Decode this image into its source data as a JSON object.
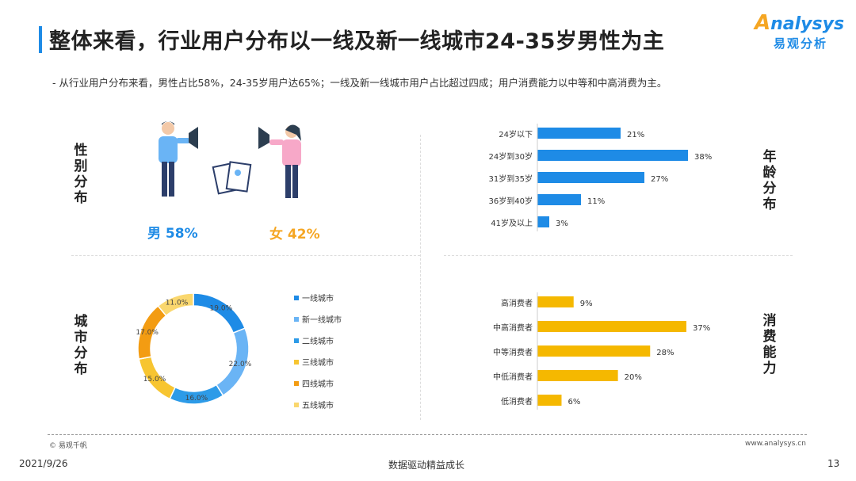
{
  "title": "整体来看，行业用户分布以一线及新一线城市24-35岁男性为主",
  "logo": {
    "en_first": "A",
    "en_rest": "nalysys",
    "cn": "易观分析"
  },
  "subtitle": "- 从行业用户分布来看，男性占比58%，24-35岁用户达65%；一线及新一线城市用户占比超过四成；用户消费能力以中等和中高消费为主。",
  "sections": {
    "gender": "性别分布",
    "age": "年龄分布",
    "city": "城市分布",
    "consumption": "消费能力"
  },
  "gender": {
    "male_label": "男 58%",
    "female_label": "女 42%"
  },
  "colors": {
    "blue": "#1e8be6",
    "orange": "#f5a623",
    "title_bar": "#1e8be6"
  },
  "chart_data": [
    {
      "type": "bar",
      "orientation": "horizontal",
      "section": "年龄分布",
      "categories": [
        "24岁以下",
        "24岁到30岁",
        "31岁到35岁",
        "36岁到40岁",
        "41岁及以上"
      ],
      "values": [
        21,
        38,
        27,
        11,
        3
      ],
      "value_labels": [
        "21%",
        "38%",
        "27%",
        "11%",
        "3%"
      ],
      "xlim": [
        0,
        38
      ],
      "color": "#1e8be6"
    },
    {
      "type": "bar",
      "orientation": "horizontal",
      "section": "消费能力",
      "categories": [
        "高消费者",
        "中高消费者",
        "中等消费者",
        "中低消费者",
        "低消费者"
      ],
      "values": [
        9,
        37,
        28,
        20,
        6
      ],
      "value_labels": [
        "9%",
        "37%",
        "28%",
        "20%",
        "6%"
      ],
      "xlim": [
        0,
        37
      ],
      "color": "#f5b800"
    },
    {
      "type": "pie",
      "style": "donut",
      "section": "城市分布",
      "legend_position": "right",
      "categories": [
        "一线城市",
        "新一线城市",
        "二线城市",
        "三线城市",
        "四线城市",
        "五线城市"
      ],
      "values": [
        19.0,
        22.0,
        16.0,
        15.0,
        17.0,
        11.0
      ],
      "value_labels": [
        "19.0%",
        "22.0%",
        "16.0%",
        "15.0%",
        "17.0%",
        "11.0%"
      ],
      "colors": [
        "#1e8be6",
        "#6ab4f5",
        "#2d9be8",
        "#f7c531",
        "#f39c12",
        "#fad76e"
      ]
    }
  ],
  "footer": {
    "source": "© 易观千帆",
    "url": "www.analysys.cn",
    "date": "2021/9/26",
    "slogan": "数据驱动精益成长",
    "page": "13"
  }
}
